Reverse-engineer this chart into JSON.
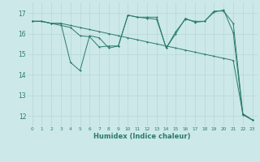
{
  "title": "",
  "xlabel": "Humidex (Indice chaleur)",
  "xlim": [
    -0.5,
    23.5
  ],
  "ylim": [
    11.5,
    17.5
  ],
  "yticks": [
    12,
    13,
    14,
    15,
    16,
    17
  ],
  "xticks": [
    0,
    1,
    2,
    3,
    4,
    5,
    6,
    7,
    8,
    9,
    10,
    11,
    12,
    13,
    14,
    15,
    16,
    17,
    18,
    19,
    20,
    21,
    22,
    23
  ],
  "bg_color": "#cce8e8",
  "line_color": "#2a7a6e",
  "grid_color": "#b8d8d8",
  "s1": [
    16.6,
    16.6,
    16.5,
    16.5,
    14.6,
    14.2,
    15.9,
    15.8,
    15.3,
    15.4,
    16.9,
    16.8,
    16.8,
    16.8,
    15.3,
    16.1,
    16.7,
    16.6,
    16.6,
    17.1,
    17.1,
    16.5,
    12.1,
    11.8
  ],
  "s2": [
    16.6,
    16.6,
    16.5,
    16.5,
    16.4,
    16.3,
    16.2,
    16.1,
    16.0,
    15.9,
    15.8,
    15.7,
    15.6,
    15.5,
    15.4,
    15.3,
    15.2,
    15.1,
    15.0,
    14.9,
    14.8,
    14.7,
    12.1,
    11.8
  ],
  "s3": [
    16.6,
    16.6,
    16.5,
    16.4,
    16.3,
    15.9,
    15.85,
    15.35,
    15.4,
    15.4,
    16.9,
    16.8,
    16.75,
    16.7,
    15.3,
    16.0,
    16.75,
    16.55,
    16.6,
    17.05,
    17.15,
    16.05,
    12.05,
    11.8
  ]
}
